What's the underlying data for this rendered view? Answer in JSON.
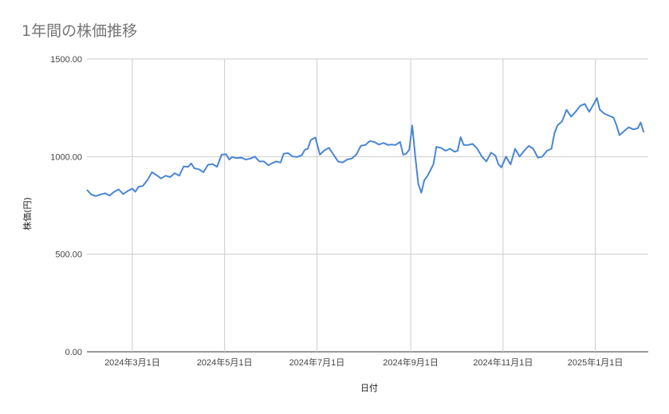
{
  "chart_data": {
    "type": "line",
    "title": "1年間の株価推移",
    "xlabel": "日付",
    "ylabel": "株価(円)",
    "ylim": [
      0,
      1500
    ],
    "y_ticks": [
      "0.00",
      "500.00",
      "1000.00",
      "1500.00"
    ],
    "x_ticks": [
      {
        "date": "2024-03-01",
        "label": "2024年3月1日"
      },
      {
        "date": "2024-05-01",
        "label": "2024年5月1日"
      },
      {
        "date": "2024-07-01",
        "label": "2024年7月1日"
      },
      {
        "date": "2024-09-01",
        "label": "2024年9月1日"
      },
      {
        "date": "2024-11-01",
        "label": "2024年11月1日"
      },
      {
        "date": "2025-01-01",
        "label": "2025年1月1日"
      }
    ],
    "x_range": [
      "2024-01-31",
      "2025-02-05"
    ],
    "grid": true,
    "series": [
      {
        "color": "#4a86d4",
        "points": [
          [
            "2024-01-31",
            830
          ],
          [
            "2024-02-03",
            805
          ],
          [
            "2024-02-06",
            798
          ],
          [
            "2024-02-09",
            806
          ],
          [
            "2024-02-12",
            812
          ],
          [
            "2024-02-15",
            800
          ],
          [
            "2024-02-18",
            820
          ],
          [
            "2024-02-21",
            832
          ],
          [
            "2024-02-24",
            808
          ],
          [
            "2024-02-27",
            824
          ],
          [
            "2024-03-01",
            836
          ],
          [
            "2024-03-03",
            820
          ],
          [
            "2024-03-05",
            845
          ],
          [
            "2024-03-08",
            850
          ],
          [
            "2024-03-11",
            880
          ],
          [
            "2024-03-14",
            920
          ],
          [
            "2024-03-17",
            905
          ],
          [
            "2024-03-20",
            888
          ],
          [
            "2024-03-23",
            902
          ],
          [
            "2024-03-26",
            895
          ],
          [
            "2024-03-29",
            915
          ],
          [
            "2024-04-01",
            902
          ],
          [
            "2024-04-04",
            950
          ],
          [
            "2024-04-07",
            948
          ],
          [
            "2024-04-09",
            965
          ],
          [
            "2024-04-11",
            940
          ],
          [
            "2024-04-14",
            935
          ],
          [
            "2024-04-17",
            920
          ],
          [
            "2024-04-20",
            958
          ],
          [
            "2024-04-23",
            962
          ],
          [
            "2024-04-26",
            948
          ],
          [
            "2024-04-29",
            1010
          ],
          [
            "2024-05-02",
            1012
          ],
          [
            "2024-05-04",
            985
          ],
          [
            "2024-05-06",
            998
          ],
          [
            "2024-05-09",
            992
          ],
          [
            "2024-05-12",
            995
          ],
          [
            "2024-05-15",
            985
          ],
          [
            "2024-05-18",
            990
          ],
          [
            "2024-05-21",
            1000
          ],
          [
            "2024-05-24",
            975
          ],
          [
            "2024-05-27",
            975
          ],
          [
            "2024-05-30",
            955
          ],
          [
            "2024-06-01",
            965
          ],
          [
            "2024-06-04",
            975
          ],
          [
            "2024-06-07",
            970
          ],
          [
            "2024-06-09",
            1015
          ],
          [
            "2024-06-12",
            1018
          ],
          [
            "2024-06-15",
            1000
          ],
          [
            "2024-06-18",
            998
          ],
          [
            "2024-06-21",
            1008
          ],
          [
            "2024-06-23",
            1035
          ],
          [
            "2024-06-25",
            1040
          ],
          [
            "2024-06-27",
            1085
          ],
          [
            "2024-06-30",
            1098
          ],
          [
            "2024-07-03",
            1010
          ],
          [
            "2024-07-06",
            1032
          ],
          [
            "2024-07-09",
            1045
          ],
          [
            "2024-07-12",
            1010
          ],
          [
            "2024-07-15",
            975
          ],
          [
            "2024-07-18",
            970
          ],
          [
            "2024-07-21",
            985
          ],
          [
            "2024-07-24",
            990
          ],
          [
            "2024-07-27",
            1010
          ],
          [
            "2024-07-30",
            1055
          ],
          [
            "2024-08-02",
            1060
          ],
          [
            "2024-08-05",
            1080
          ],
          [
            "2024-08-08",
            1075
          ],
          [
            "2024-08-11",
            1062
          ],
          [
            "2024-08-14",
            1070
          ],
          [
            "2024-08-17",
            1060
          ],
          [
            "2024-08-19",
            1062
          ],
          [
            "2024-08-22",
            1060
          ],
          [
            "2024-08-25",
            1075
          ],
          [
            "2024-08-27",
            1010
          ],
          [
            "2024-08-29",
            1015
          ],
          [
            "2024-08-31",
            1035
          ],
          [
            "2024-09-02",
            1160
          ],
          [
            "2024-09-04",
            1000
          ],
          [
            "2024-09-06",
            860
          ],
          [
            "2024-09-08",
            815
          ],
          [
            "2024-09-10",
            880
          ],
          [
            "2024-09-12",
            900
          ],
          [
            "2024-09-14",
            930
          ],
          [
            "2024-09-16",
            960
          ],
          [
            "2024-09-18",
            1050
          ],
          [
            "2024-09-21",
            1045
          ],
          [
            "2024-09-24",
            1030
          ],
          [
            "2024-09-27",
            1040
          ],
          [
            "2024-09-30",
            1025
          ],
          [
            "2024-10-02",
            1030
          ],
          [
            "2024-10-04",
            1100
          ],
          [
            "2024-10-06",
            1060
          ],
          [
            "2024-10-09",
            1060
          ],
          [
            "2024-10-12",
            1065
          ],
          [
            "2024-10-15",
            1040
          ],
          [
            "2024-10-18",
            1000
          ],
          [
            "2024-10-21",
            975
          ],
          [
            "2024-10-24",
            1020
          ],
          [
            "2024-10-27",
            1005
          ],
          [
            "2024-10-29",
            960
          ],
          [
            "2024-10-31",
            945
          ],
          [
            "2024-11-03",
            1000
          ],
          [
            "2024-11-06",
            960
          ],
          [
            "2024-11-09",
            1040
          ],
          [
            "2024-11-12",
            1000
          ],
          [
            "2024-11-15",
            1030
          ],
          [
            "2024-11-18",
            1055
          ],
          [
            "2024-11-21",
            1040
          ],
          [
            "2024-11-24",
            995
          ],
          [
            "2024-11-27",
            1000
          ],
          [
            "2024-11-30",
            1030
          ],
          [
            "2024-12-03",
            1040
          ],
          [
            "2024-12-05",
            1120
          ],
          [
            "2024-12-07",
            1160
          ],
          [
            "2024-12-10",
            1180
          ],
          [
            "2024-12-13",
            1240
          ],
          [
            "2024-12-16",
            1205
          ],
          [
            "2024-12-19",
            1230
          ],
          [
            "2024-12-22",
            1260
          ],
          [
            "2024-12-25",
            1270
          ],
          [
            "2024-12-28",
            1230
          ],
          [
            "2024-12-31",
            1270
          ],
          [
            "2025-01-02",
            1300
          ],
          [
            "2025-01-04",
            1240
          ],
          [
            "2025-01-07",
            1220
          ],
          [
            "2025-01-10",
            1210
          ],
          [
            "2025-01-13",
            1200
          ],
          [
            "2025-01-15",
            1160
          ],
          [
            "2025-01-17",
            1110
          ],
          [
            "2025-01-20",
            1130
          ],
          [
            "2025-01-23",
            1150
          ],
          [
            "2025-01-26",
            1140
          ],
          [
            "2025-01-29",
            1145
          ],
          [
            "2025-01-31",
            1175
          ],
          [
            "2025-02-02",
            1125
          ]
        ]
      }
    ]
  }
}
